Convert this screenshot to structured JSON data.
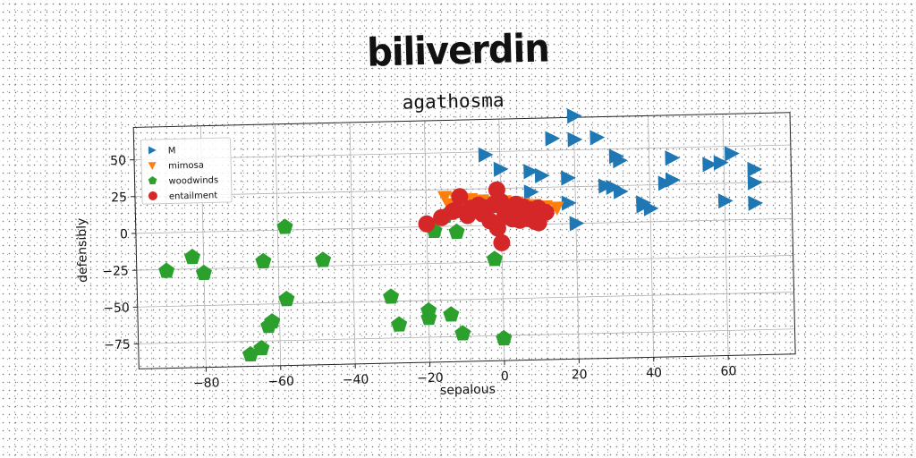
{
  "page": {
    "title": "biliverdin"
  },
  "chart_data": {
    "type": "scatter",
    "title": "agathosma",
    "xlabel": "sepalous",
    "ylabel": "defensibly",
    "xlim": [
      -98,
      78
    ],
    "ylim": [
      -92,
      72
    ],
    "xticks": [
      -80,
      -60,
      -40,
      -20,
      0,
      20,
      40,
      60
    ],
    "yticks": [
      -75,
      -50,
      -25,
      0,
      25,
      50
    ],
    "xtick_labels": [
      "−80",
      "−60",
      "−40",
      "−20",
      "0",
      "20",
      "40",
      "60"
    ],
    "ytick_labels": [
      "−75",
      "−50",
      "−25",
      "0",
      "25",
      "50"
    ],
    "grid": true,
    "legend_position": "top-left",
    "series": [
      {
        "name": "M",
        "color": "#1f77b4",
        "marker": "triangle-right",
        "points": [
          [
            20,
            73
          ],
          [
            14,
            58
          ],
          [
            20,
            57
          ],
          [
            26,
            58
          ],
          [
            -4,
            48
          ],
          [
            0,
            38
          ],
          [
            8,
            36
          ],
          [
            11,
            33
          ],
          [
            18,
            31
          ],
          [
            31,
            45
          ],
          [
            32,
            42
          ],
          [
            46,
            43
          ],
          [
            56,
            38
          ],
          [
            59,
            39
          ],
          [
            62,
            45
          ],
          [
            68,
            34
          ],
          [
            68,
            25
          ],
          [
            68,
            11
          ],
          [
            28,
            25
          ],
          [
            30,
            24
          ],
          [
            32,
            21
          ],
          [
            44,
            26
          ],
          [
            46,
            28
          ],
          [
            38,
            11
          ],
          [
            40,
            9
          ],
          [
            38,
            13
          ],
          [
            60,
            13
          ],
          [
            8,
            22
          ],
          [
            18,
            14
          ],
          [
            20,
            0
          ]
        ]
      },
      {
        "name": "mimosa",
        "color": "#ff7f0e",
        "marker": "triangle-down",
        "points": [
          [
            -15,
            20
          ],
          [
            -12,
            19
          ],
          [
            -8,
            18
          ],
          [
            -5,
            17
          ],
          [
            -2,
            16
          ],
          [
            1,
            16
          ],
          [
            4,
            15
          ],
          [
            6,
            14
          ],
          [
            9,
            13
          ],
          [
            12,
            12
          ],
          [
            15,
            11
          ],
          [
            -14,
            15
          ],
          [
            -10,
            14
          ],
          [
            -6,
            13
          ],
          [
            -3,
            12
          ],
          [
            0,
            12
          ],
          [
            3,
            11
          ],
          [
            7,
            10
          ],
          [
            11,
            10
          ]
        ]
      },
      {
        "name": "woodwinds",
        "color": "#2ca02c",
        "marker": "pentagon",
        "points": [
          [
            -90,
            -26
          ],
          [
            -83,
            -17
          ],
          [
            -80,
            -28
          ],
          [
            -64,
            -21
          ],
          [
            -58,
            2
          ],
          [
            -48,
            -21
          ],
          [
            -30,
            -47
          ],
          [
            -58,
            -47
          ],
          [
            -62,
            -62
          ],
          [
            -63,
            -65
          ],
          [
            -65,
            -80
          ],
          [
            -68,
            -84
          ],
          [
            -28,
            -66
          ],
          [
            -20,
            -57
          ],
          [
            -20,
            -62
          ],
          [
            -14,
            -60
          ],
          [
            -11,
            -73
          ],
          [
            -12,
            -4
          ],
          [
            -18,
            -3
          ],
          [
            -15,
            7
          ],
          [
            -2,
            -23
          ],
          [
            0,
            -77
          ]
        ]
      },
      {
        "name": "entailment",
        "color": "#d62728",
        "marker": "circle",
        "points": [
          [
            -20,
            2
          ],
          [
            -16,
            6
          ],
          [
            -13,
            10
          ],
          [
            -11,
            20
          ],
          [
            -12,
            11
          ],
          [
            -8,
            12
          ],
          [
            -6,
            14
          ],
          [
            -4,
            12
          ],
          [
            -2,
            14
          ],
          [
            0,
            13
          ],
          [
            2,
            11
          ],
          [
            4,
            14
          ],
          [
            6,
            12
          ],
          [
            8,
            10
          ],
          [
            10,
            11
          ],
          [
            12,
            8
          ],
          [
            -1,
            24
          ],
          [
            0,
            16
          ],
          [
            1,
            6
          ],
          [
            3,
            4
          ],
          [
            5,
            3
          ],
          [
            7,
            4
          ],
          [
            9,
            2
          ],
          [
            10,
            1
          ],
          [
            -3,
            3
          ],
          [
            -1,
            -2
          ],
          [
            0,
            -12
          ],
          [
            5,
            8
          ],
          [
            -5,
            8
          ],
          [
            -9,
            7
          ]
        ]
      }
    ]
  }
}
